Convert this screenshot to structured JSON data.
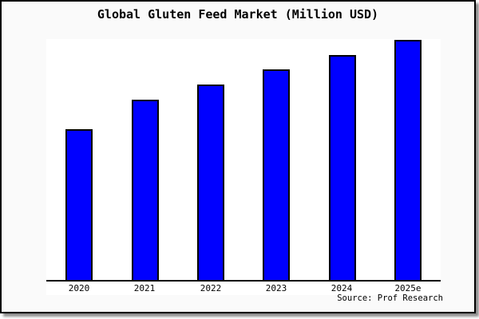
{
  "window": {
    "background": "#ffffff",
    "frame_background": "#fafafa",
    "frame_border_color": "#000000",
    "plot_background": "#ffffff"
  },
  "chart": {
    "title": "Global Gluten Feed Market (Million USD)",
    "source": "Source: Prof Research"
  },
  "chart_data": {
    "type": "bar",
    "title": "Global Gluten Feed Market (Million USD)",
    "categories": [
      "2020",
      "2021",
      "2022",
      "2023",
      "2024",
      "2025e"
    ],
    "values": [
      189,
      226,
      245,
      264,
      282,
      301
    ],
    "values_note": "no numeric y-axis shown; values are relative heights (tallest bar = 301 reaches plot top)",
    "xlabel": "",
    "ylabel": "",
    "ylim": [
      0,
      302
    ],
    "grid": false,
    "legend": false,
    "y_axis_visible": false,
    "bar_color": "#0000ff",
    "bar_border_color": "#000000",
    "annotations": [
      "Source: Prof Research"
    ]
  }
}
